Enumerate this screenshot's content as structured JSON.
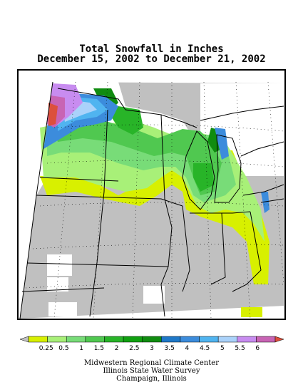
{
  "map": {
    "title_line1": "Total Snowfall in Inches",
    "title_line2": "December 15, 2002 to December 21, 2002",
    "colors": {
      "no_data": "#c0c0c0",
      "lt_0_25": "#ffffff",
      "state_border": "#000000",
      "graticule": "#000000"
    }
  },
  "legend": {
    "tick_labels": [
      "0.25",
      "0.5",
      "1",
      "1.5",
      "2",
      "2.5",
      "3",
      "3.5",
      "4",
      "4.5",
      "5",
      "5.5",
      "6"
    ],
    "colors": [
      "#c0c0c0",
      "#d8f000",
      "#a8f078",
      "#78dc78",
      "#50c850",
      "#28b428",
      "#10a010",
      "#108c10",
      "#1e78c8",
      "#3c8cdc",
      "#50b4f0",
      "#aad2fa",
      "#c88cf0",
      "#c864b4",
      "#dc503c"
    ]
  },
  "footer": {
    "line1": "Midwestern Regional Climate Center",
    "line2": "Illinois State Water Survey",
    "line3": "Champaign, Illinois"
  }
}
